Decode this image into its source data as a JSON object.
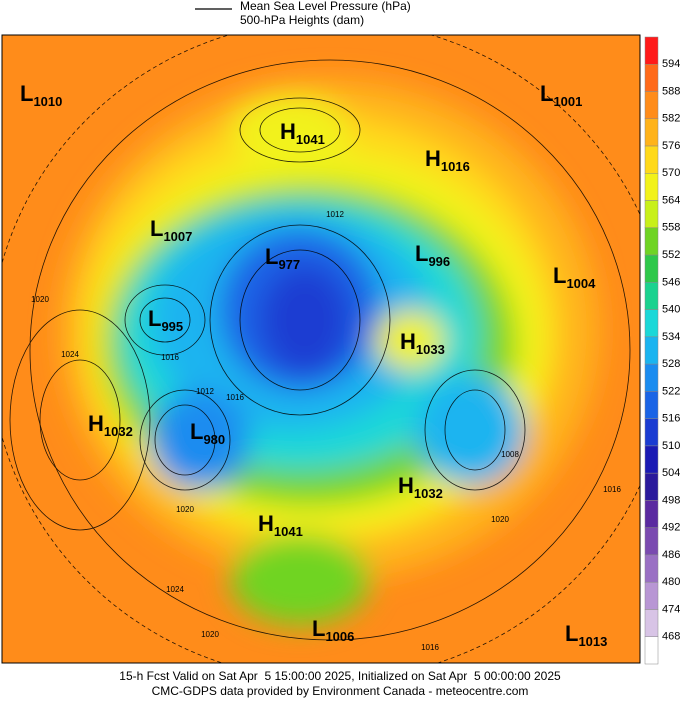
{
  "legend": {
    "line_label": "Mean Sea Level Pressure (hPa)",
    "fill_label": "500-hPa Heights (dam)"
  },
  "colorbar": {
    "levels": [
      594,
      588,
      582,
      576,
      570,
      564,
      558,
      552,
      546,
      540,
      534,
      528,
      522,
      516,
      510,
      504,
      498,
      492,
      486,
      480,
      474,
      468
    ],
    "colors": [
      "#ff1a1a",
      "#ff6a1a",
      "#ff8c1a",
      "#ffb31a",
      "#ffd91a",
      "#f2f21a",
      "#c8f01a",
      "#6fd424",
      "#2ec84a",
      "#1ad28f",
      "#1ad8d8",
      "#1ab4f0",
      "#1a8cf0",
      "#1a64e6",
      "#1a3cd2",
      "#1a1ab4",
      "#2a1a9c",
      "#5a2aa0",
      "#7a4ab0",
      "#9a70c4",
      "#b896d4",
      "#d8c4e6",
      "#ffffff"
    ]
  },
  "centers": [
    {
      "letter": "L",
      "value": "1010"
    },
    {
      "letter": "H",
      "value": "1041"
    },
    {
      "letter": "L",
      "value": "1001"
    },
    {
      "letter": "H",
      "value": "1016"
    },
    {
      "letter": "L",
      "value": "1007"
    },
    {
      "letter": "L",
      "value": "977"
    },
    {
      "letter": "L",
      "value": "996"
    },
    {
      "letter": "L",
      "value": "1004"
    },
    {
      "letter": "L",
      "value": "995"
    },
    {
      "letter": "H",
      "value": "1033"
    },
    {
      "letter": "H",
      "value": "1032"
    },
    {
      "letter": "L",
      "value": "980"
    },
    {
      "letter": "H",
      "value": "1032"
    },
    {
      "letter": "H",
      "value": "1041"
    },
    {
      "letter": "L",
      "value": "1006"
    },
    {
      "letter": "L",
      "value": "1013"
    }
  ],
  "contour_labels": [
    "1012",
    "1020",
    "1024",
    "1016",
    "1012",
    "1016",
    "1020",
    "1008",
    "1020",
    "1016",
    "1024",
    "1020",
    "1016"
  ],
  "footer": {
    "line1": "15-h Fcst Valid on Sat Apr  5 15:00:00 2025, Initialized on Sat Apr  5 00:00:00 2025",
    "line2": "CMC-GDPS data provided by Environment Canada - meteocentre.com"
  }
}
